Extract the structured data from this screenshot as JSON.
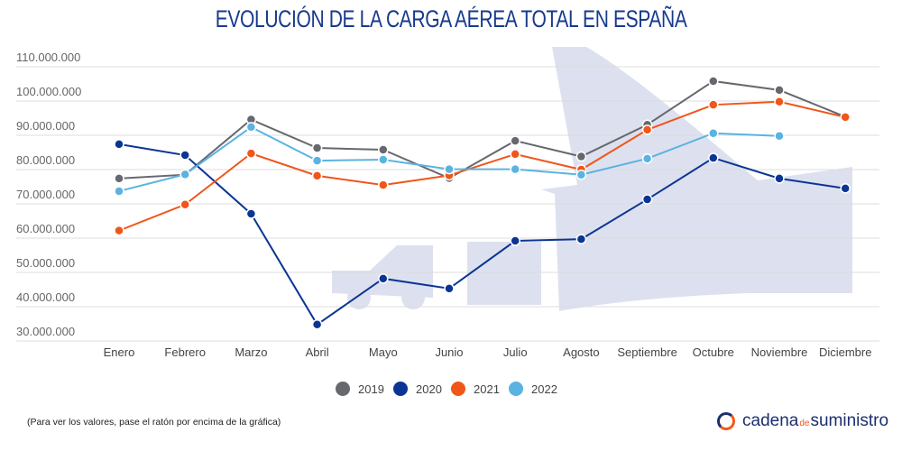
{
  "chart_data": {
    "type": "line",
    "title": "EVOLUCIÓN DE LA CARGA AÉREA TOTAL EN ESPAÑA",
    "xlabel": "",
    "ylabel": "",
    "categories": [
      "Enero",
      "Febrero",
      "Marzo",
      "Abril",
      "Mayo",
      "Junio",
      "Julio",
      "Agosto",
      "Septiembre",
      "Octubre",
      "Noviembre",
      "Diciembre"
    ],
    "ylim": [
      30000000,
      110000000
    ],
    "yticks": [
      30000000,
      40000000,
      50000000,
      60000000,
      70000000,
      80000000,
      90000000,
      100000000,
      110000000
    ],
    "ytick_labels": [
      "30.000.000",
      "40.000.000",
      "50.000.000",
      "60.000.000",
      "70.000.000",
      "80.000.000",
      "90.000.000",
      "100.000.000",
      "110.000.000"
    ],
    "grid": true,
    "legend_position": "bottom",
    "series": [
      {
        "name": "2019",
        "color": "#66686e",
        "values": [
          77400000,
          78500000,
          94600000,
          86300000,
          85800000,
          77500000,
          88400000,
          83800000,
          93100000,
          105800000,
          103200000,
          95400000
        ]
      },
      {
        "name": "2020",
        "color": "#0b3594",
        "values": [
          87400000,
          84200000,
          67100000,
          34800000,
          48200000,
          45300000,
          59200000,
          59700000,
          71300000,
          83400000,
          77400000,
          74500000
        ]
      },
      {
        "name": "2021",
        "color": "#f0561a",
        "values": [
          62200000,
          69800000,
          84700000,
          78200000,
          75500000,
          78300000,
          84500000,
          80000000,
          91600000,
          98900000,
          99800000,
          95300000
        ]
      },
      {
        "name": "2022",
        "color": "#5ab3e0",
        "values": [
          73700000,
          78600000,
          92400000,
          82600000,
          82900000,
          80100000,
          80100000,
          78500000,
          83200000,
          90600000,
          89800000,
          null
        ]
      }
    ]
  },
  "footer": {
    "note": "(Para ver los valores, pase el ratón por encima de la gráfica)",
    "logo_main": "cadena",
    "logo_de": "de",
    "logo_end": "suministro"
  }
}
